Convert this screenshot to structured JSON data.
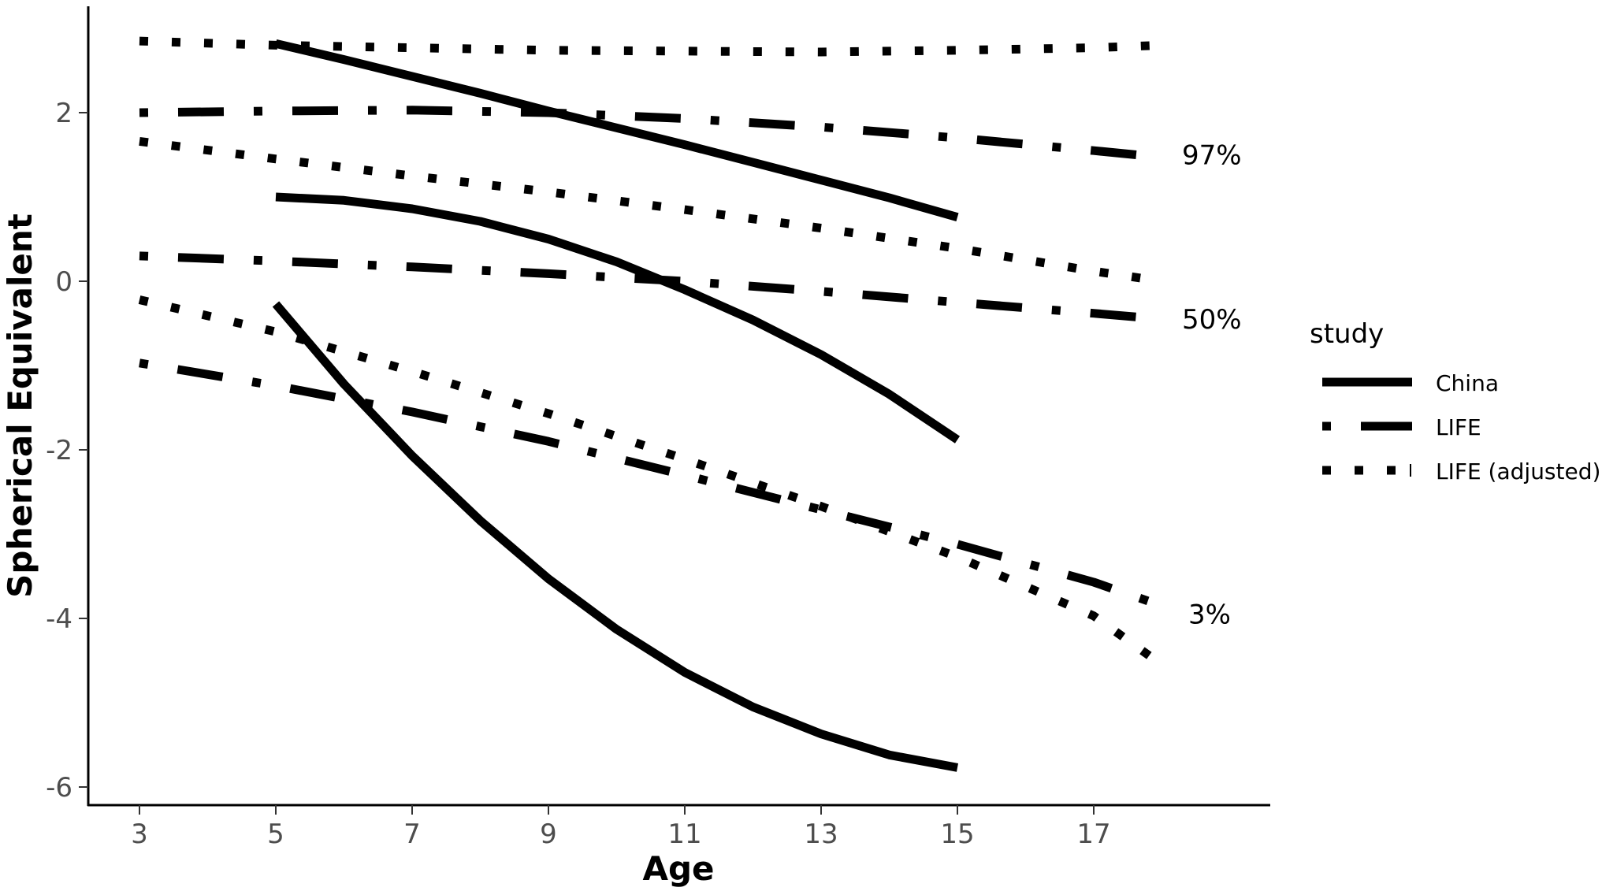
{
  "chart_data": {
    "type": "line",
    "xlabel": "Age",
    "ylabel": "Spherical Equivalent",
    "xlim": [
      2.3,
      19.7
    ],
    "ylim": [
      -6.2,
      3.2
    ],
    "xticks": [
      "3",
      "5",
      "7",
      "9",
      "11",
      "13",
      "15",
      "17"
    ],
    "yticks": [
      "2",
      "0",
      "-2",
      "-4",
      "-6"
    ],
    "grid": false,
    "legend": {
      "title": "study",
      "position": "right",
      "entries": [
        "China",
        "LIFE",
        "LIFE (adjusted)"
      ]
    },
    "percentile_labels": [
      {
        "text": "97%",
        "y": 1.5
      },
      {
        "text": "50%",
        "y": -0.45
      },
      {
        "text": "3%",
        "y": -3.95
      }
    ],
    "series": [
      {
        "study": "China",
        "percentile": "97%",
        "x": [
          5,
          6,
          7,
          8,
          9,
          10,
          11,
          12,
          13,
          14,
          15
        ],
        "y": [
          2.82,
          2.63,
          2.43,
          2.23,
          2.02,
          1.82,
          1.62,
          1.41,
          1.2,
          0.99,
          0.76
        ]
      },
      {
        "study": "China",
        "percentile": "50%",
        "x": [
          5,
          6,
          7,
          8,
          9,
          10,
          11,
          12,
          13,
          14,
          15
        ],
        "y": [
          1.0,
          0.96,
          0.86,
          0.71,
          0.5,
          0.23,
          -0.1,
          -0.46,
          -0.87,
          -1.34,
          -1.88
        ]
      },
      {
        "study": "China",
        "percentile": "3%",
        "x": [
          5,
          6,
          7,
          8,
          9,
          10,
          11,
          12,
          13,
          14,
          15
        ],
        "y": [
          -0.27,
          -1.22,
          -2.07,
          -2.84,
          -3.53,
          -4.13,
          -4.64,
          -5.05,
          -5.37,
          -5.62,
          -5.77
        ]
      },
      {
        "study": "LIFE",
        "percentile": "97%",
        "x": [
          3,
          5,
          7,
          9,
          11,
          13,
          15,
          17,
          18
        ],
        "y": [
          2.0,
          2.02,
          2.03,
          2.0,
          1.93,
          1.83,
          1.7,
          1.55,
          1.47
        ]
      },
      {
        "study": "LIFE",
        "percentile": "50%",
        "x": [
          3,
          5,
          7,
          9,
          11,
          13,
          15,
          17,
          18
        ],
        "y": [
          0.3,
          0.24,
          0.17,
          0.09,
          0.0,
          -0.12,
          -0.25,
          -0.38,
          -0.45
        ]
      },
      {
        "study": "LIFE",
        "percentile": "3%",
        "x": [
          3,
          5,
          7,
          9,
          11,
          13,
          15,
          17,
          18
        ],
        "y": [
          -0.97,
          -1.24,
          -1.55,
          -1.9,
          -2.3,
          -2.71,
          -3.12,
          -3.57,
          -3.85
        ]
      },
      {
        "study": "LIFE (adjusted)",
        "percentile": "97%",
        "x": [
          3,
          5,
          7,
          9,
          11,
          13,
          15,
          17,
          18
        ],
        "y": [
          2.85,
          2.8,
          2.77,
          2.74,
          2.73,
          2.72,
          2.74,
          2.77,
          2.8
        ]
      },
      {
        "study": "LIFE (adjusted)",
        "percentile": "50%",
        "x": [
          3,
          5,
          7,
          9,
          11,
          13,
          15,
          17,
          18
        ],
        "y": [
          1.66,
          1.45,
          1.25,
          1.06,
          0.85,
          0.63,
          0.39,
          0.12,
          0.0
        ]
      },
      {
        "study": "LIFE (adjusted)",
        "percentile": "3%",
        "x": [
          3,
          5,
          7,
          9,
          11,
          13,
          15,
          17,
          18
        ],
        "y": [
          -0.22,
          -0.6,
          -1.07,
          -1.57,
          -2.11,
          -2.67,
          -3.27,
          -3.97,
          -4.55
        ]
      }
    ]
  }
}
